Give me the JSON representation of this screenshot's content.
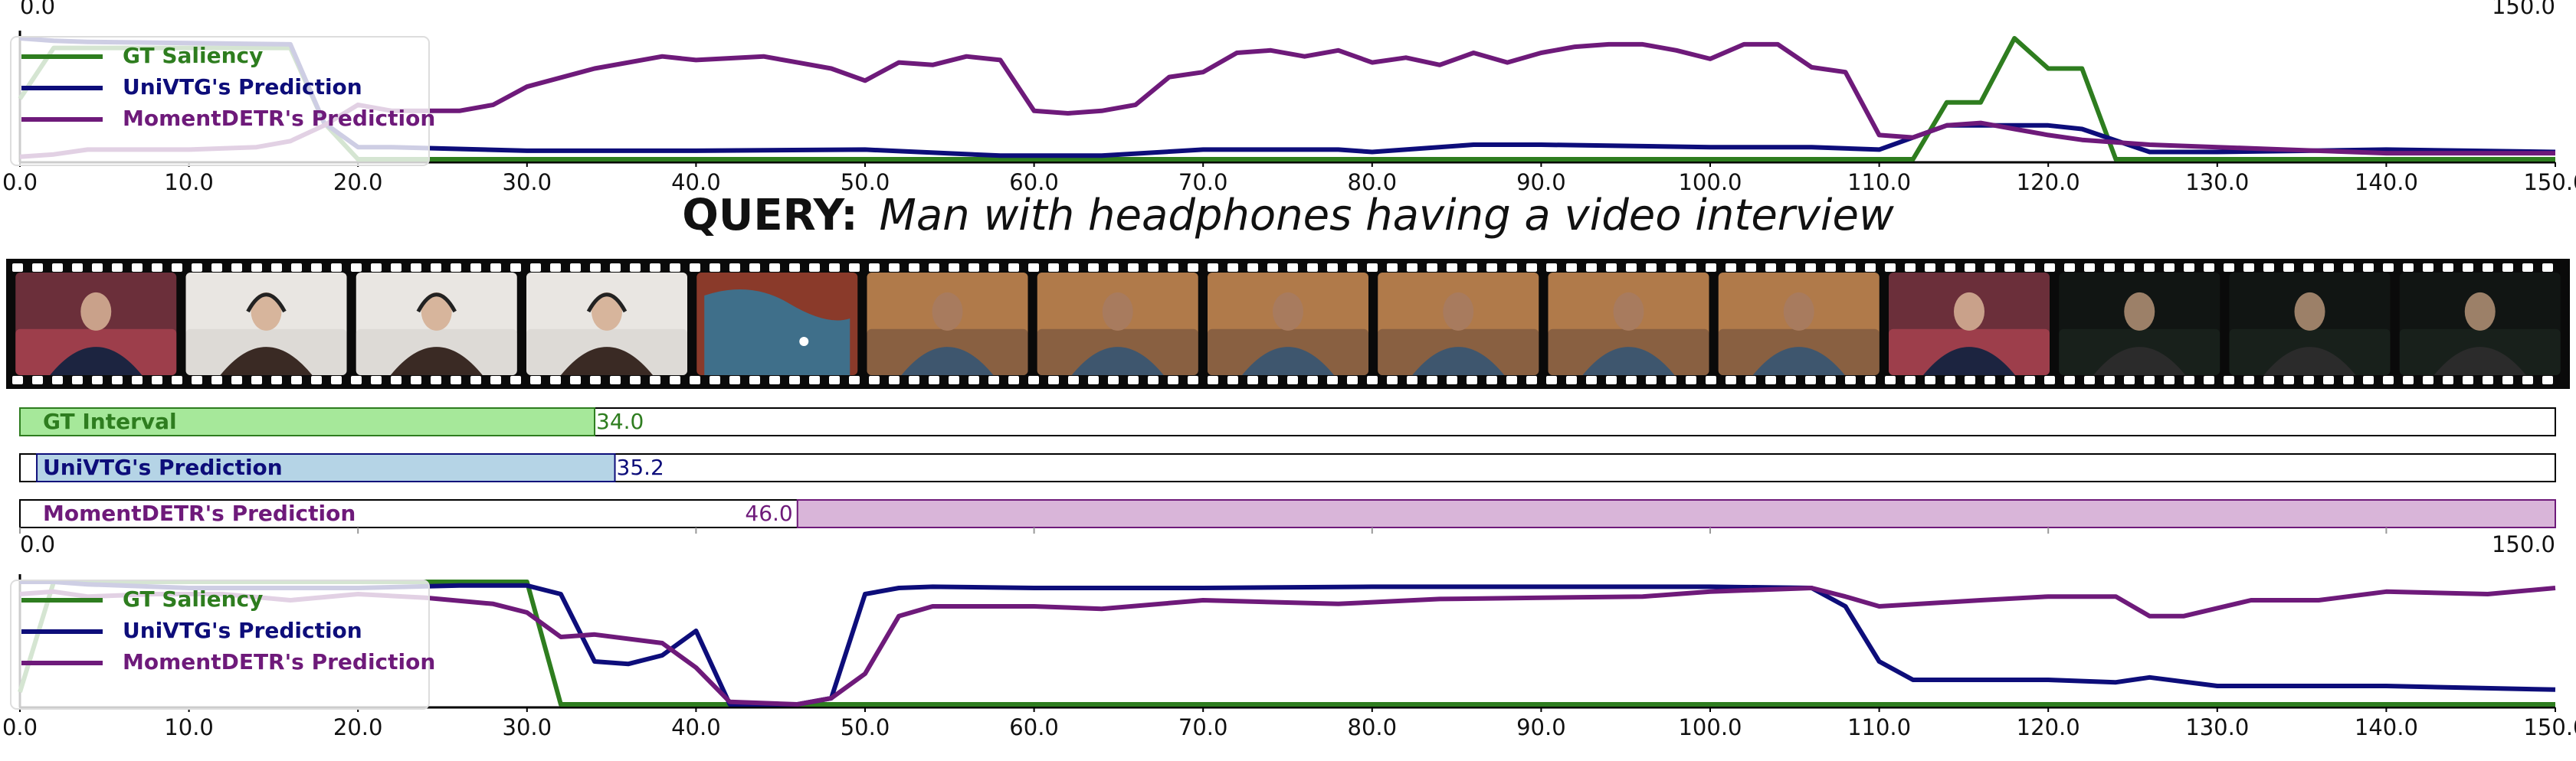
{
  "query": {
    "prefix": "QUERY:",
    "text": "Man with headphones having a video interview"
  },
  "colors": {
    "gt": "#2e7d1f",
    "univtg": "#0d0d7a",
    "momentdetr": "#6e1a7a",
    "gt_fill": "#a6e89a",
    "univtg_fill": "#b5d4e6",
    "momentdetr_fill": "#d9b5d9"
  },
  "frames": [
    {
      "scene": "newsroom"
    },
    {
      "scene": "headphones"
    },
    {
      "scene": "headphones"
    },
    {
      "scene": "headphones"
    },
    {
      "scene": "map"
    },
    {
      "scene": "office"
    },
    {
      "scene": "office"
    },
    {
      "scene": "office"
    },
    {
      "scene": "office"
    },
    {
      "scene": "office"
    },
    {
      "scene": "office"
    },
    {
      "scene": "newsroom"
    },
    {
      "scene": "dark"
    },
    {
      "scene": "dark"
    },
    {
      "scene": "dark"
    }
  ],
  "chart_data": [
    {
      "type": "line",
      "title": "",
      "xlim": [
        0,
        150
      ],
      "ylim": [
        0,
        1
      ],
      "x_ticks": [
        "0.0",
        "10.0",
        "20.0",
        "30.0",
        "40.0",
        "50.0",
        "60.0",
        "70.0",
        "80.0",
        "90.0",
        "100.0",
        "110.0",
        "120.0",
        "130.0",
        "140.0",
        "150.0"
      ],
      "corner_labels": {
        "left": "0.0",
        "right": "150.0"
      },
      "legend_position": "top-left",
      "legend": [
        "GT Saliency",
        "UniVTG's Prediction",
        "MomentDETR's Prediction"
      ],
      "series": [
        {
          "name": "GT Saliency",
          "color": "#2e7d1f",
          "x": [
            0,
            2,
            4,
            16,
            18,
            20,
            112,
            114,
            116,
            118,
            120,
            122,
            124,
            150
          ],
          "y": [
            0.5,
            0.92,
            0.92,
            0.92,
            0.3,
            0.0,
            0.0,
            0.47,
            0.47,
            1.0,
            0.75,
            0.75,
            0.0,
            0.0
          ]
        },
        {
          "name": "UniVTG's Prediction",
          "color": "#0d0d7a",
          "x": [
            0,
            2,
            4,
            16,
            18,
            20,
            22,
            30,
            40,
            50,
            58,
            64,
            70,
            78,
            80,
            86,
            90,
            100,
            106,
            110,
            114,
            120,
            122,
            126,
            130,
            140,
            150
          ],
          "y": [
            1.0,
            0.98,
            0.97,
            0.95,
            0.3,
            0.1,
            0.1,
            0.07,
            0.07,
            0.08,
            0.03,
            0.03,
            0.08,
            0.08,
            0.06,
            0.12,
            0.12,
            0.1,
            0.1,
            0.08,
            0.28,
            0.28,
            0.25,
            0.06,
            0.06,
            0.08,
            0.06
          ]
        },
        {
          "name": "MomentDETR's Prediction",
          "color": "#6e1a7a",
          "x": [
            0,
            2,
            4,
            6,
            10,
            14,
            16,
            18,
            20,
            22,
            26,
            28,
            30,
            34,
            38,
            40,
            44,
            46,
            48,
            50,
            52,
            54,
            56,
            58,
            60,
            62,
            64,
            66,
            68,
            70,
            72,
            74,
            76,
            78,
            80,
            82,
            84,
            86,
            88,
            90,
            92,
            94,
            96,
            98,
            100,
            102,
            104,
            106,
            108,
            110,
            112,
            114,
            116,
            118,
            120,
            122,
            124,
            126,
            130,
            134,
            140,
            150
          ],
          "y": [
            0.02,
            0.04,
            0.08,
            0.08,
            0.08,
            0.1,
            0.15,
            0.28,
            0.45,
            0.4,
            0.4,
            0.45,
            0.6,
            0.75,
            0.85,
            0.82,
            0.85,
            0.8,
            0.75,
            0.65,
            0.8,
            0.78,
            0.85,
            0.82,
            0.4,
            0.38,
            0.4,
            0.45,
            0.68,
            0.72,
            0.88,
            0.9,
            0.85,
            0.9,
            0.8,
            0.84,
            0.78,
            0.88,
            0.8,
            0.88,
            0.93,
            0.95,
            0.95,
            0.9,
            0.83,
            0.95,
            0.95,
            0.76,
            0.72,
            0.2,
            0.18,
            0.28,
            0.3,
            0.25,
            0.2,
            0.16,
            0.14,
            0.12,
            0.1,
            0.08,
            0.05,
            0.05
          ]
        }
      ]
    },
    {
      "type": "bar",
      "xlim": [
        0,
        150
      ],
      "bars": [
        {
          "name": "GT Interval",
          "color": "#2e7d1f",
          "fill": "#a6e89a",
          "start": 0,
          "end": 34.0,
          "end_label": "34.0"
        },
        {
          "name": "UniVTG's Prediction",
          "color": "#0d0d7a",
          "fill": "#b5d4e6",
          "start": 1,
          "end": 35.2,
          "end_label": "35.2"
        },
        {
          "name": "MomentDETR's Prediction",
          "color": "#6e1a7a",
          "fill": "#d9b5d9",
          "start": 46.0,
          "end": 150,
          "start_label": "46.0"
        }
      ],
      "corner_labels": {
        "left": "0.0",
        "right": "150.0"
      }
    },
    {
      "type": "line",
      "title": "",
      "xlim": [
        0,
        150
      ],
      "ylim": [
        0,
        1
      ],
      "x_ticks": [
        "0.0",
        "10.0",
        "20.0",
        "30.0",
        "40.0",
        "50.0",
        "60.0",
        "70.0",
        "80.0",
        "90.0",
        "100.0",
        "110.0",
        "120.0",
        "130.0",
        "140.0",
        "150.0"
      ],
      "legend_position": "top-left",
      "legend": [
        "GT Saliency",
        "UniVTG's Prediction",
        "MomentDETR's Prediction"
      ],
      "series": [
        {
          "name": "GT Saliency",
          "color": "#2e7d1f",
          "x": [
            0,
            2,
            4,
            30,
            32,
            150
          ],
          "y": [
            0.1,
            1.0,
            1.0,
            1.0,
            0.0,
            0.0
          ]
        },
        {
          "name": "UniVTG's Prediction",
          "color": "#0d0d7a",
          "x": [
            0,
            2,
            4,
            10,
            16,
            20,
            26,
            30,
            32,
            34,
            36,
            38,
            40,
            42,
            46,
            48,
            50,
            52,
            54,
            60,
            70,
            80,
            90,
            100,
            106,
            108,
            110,
            112,
            120,
            124,
            126,
            130,
            140,
            150
          ],
          "y": [
            1.0,
            1.0,
            0.98,
            0.95,
            0.95,
            0.95,
            0.97,
            0.97,
            0.9,
            0.35,
            0.33,
            0.4,
            0.6,
            0.0,
            0.0,
            0.05,
            0.9,
            0.95,
            0.96,
            0.95,
            0.95,
            0.96,
            0.96,
            0.96,
            0.95,
            0.8,
            0.35,
            0.2,
            0.2,
            0.18,
            0.22,
            0.15,
            0.15,
            0.12
          ]
        },
        {
          "name": "MomentDETR's Prediction",
          "color": "#6e1a7a",
          "x": [
            0,
            2,
            4,
            8,
            12,
            16,
            20,
            24,
            28,
            30,
            32,
            34,
            38,
            40,
            42,
            46,
            48,
            50,
            52,
            54,
            60,
            64,
            70,
            78,
            84,
            90,
            96,
            100,
            106,
            108,
            110,
            116,
            120,
            124,
            126,
            128,
            132,
            136,
            140,
            146,
            150
          ],
          "y": [
            0.9,
            0.92,
            0.88,
            0.9,
            0.9,
            0.85,
            0.9,
            0.87,
            0.82,
            0.75,
            0.55,
            0.57,
            0.5,
            0.3,
            0.02,
            0.0,
            0.05,
            0.25,
            0.72,
            0.8,
            0.8,
            0.78,
            0.85,
            0.82,
            0.86,
            0.87,
            0.88,
            0.92,
            0.95,
            0.88,
            0.8,
            0.85,
            0.88,
            0.88,
            0.72,
            0.72,
            0.85,
            0.85,
            0.92,
            0.9,
            0.95
          ]
        }
      ]
    }
  ]
}
